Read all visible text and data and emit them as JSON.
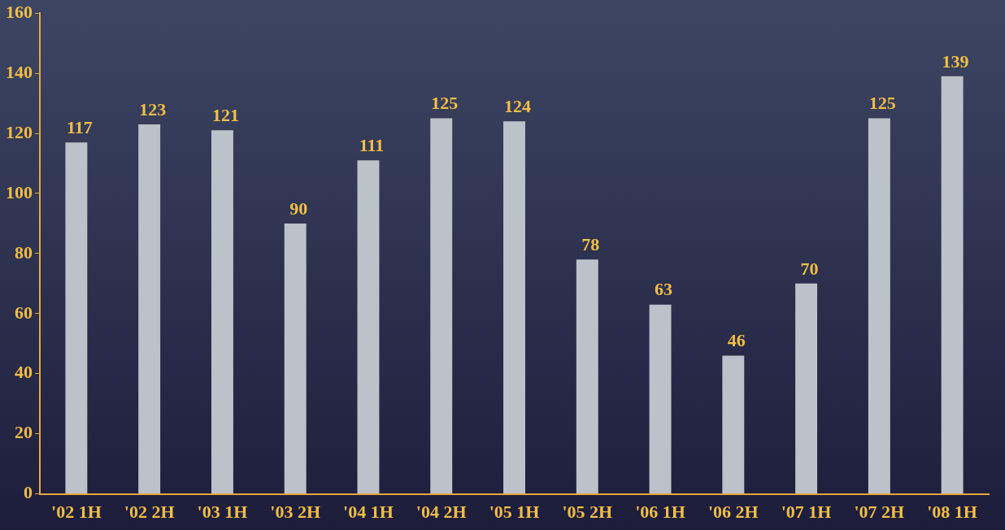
{
  "chart_data": {
    "type": "bar",
    "categories": [
      "'02 1H",
      "'02 2H",
      "'03 1H",
      "'03 2H",
      "'04 1H",
      "'04 2H",
      "'05 1H",
      "'05 2H",
      "'06 1H",
      "'06 2H",
      "'07 1H",
      "'07 2H",
      "'08 1H"
    ],
    "values": [
      117,
      123,
      121,
      90,
      111,
      125,
      124,
      78,
      63,
      46,
      70,
      125,
      139
    ],
    "color": "#bcc2c9",
    "ylim": [
      0,
      160
    ],
    "yticks": [
      0,
      20,
      40,
      60,
      80,
      100,
      120,
      140,
      160
    ],
    "grid": false,
    "legend": false,
    "data_labels": true
  }
}
